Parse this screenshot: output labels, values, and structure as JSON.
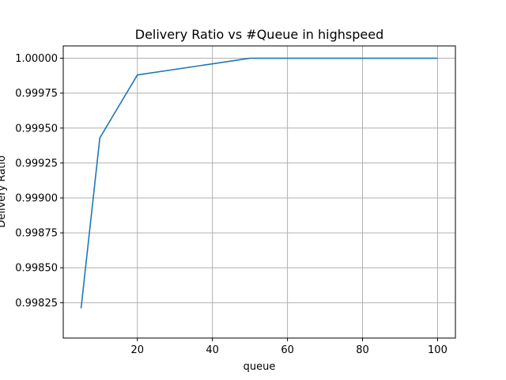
{
  "chart_data": {
    "type": "line",
    "title": "Delivery Ratio vs #Queue in highspeed",
    "xlabel": "queue",
    "ylabel": "Delivery Ratio",
    "xlim": [
      0.25,
      104.75
    ],
    "ylim": [
      0.997997,
      1.000088
    ],
    "xticks": [
      20,
      40,
      60,
      80,
      100
    ],
    "xtick_labels": [
      "20",
      "40",
      "60",
      "80",
      "100"
    ],
    "yticks": [
      0.99825,
      0.9985,
      0.99875,
      0.999,
      0.99925,
      0.9995,
      0.99975,
      1.0
    ],
    "ytick_labels": [
      "0.99825",
      "0.99850",
      "0.99875",
      "0.99900",
      "0.99925",
      "0.99950",
      "0.99975",
      "1.00000"
    ],
    "grid": true,
    "series": [
      {
        "color": "#1f77b4",
        "x": [
          5,
          10,
          20,
          50,
          100
        ],
        "y": [
          0.99821,
          0.99943,
          0.99988,
          1.0,
          1.0
        ]
      }
    ]
  }
}
